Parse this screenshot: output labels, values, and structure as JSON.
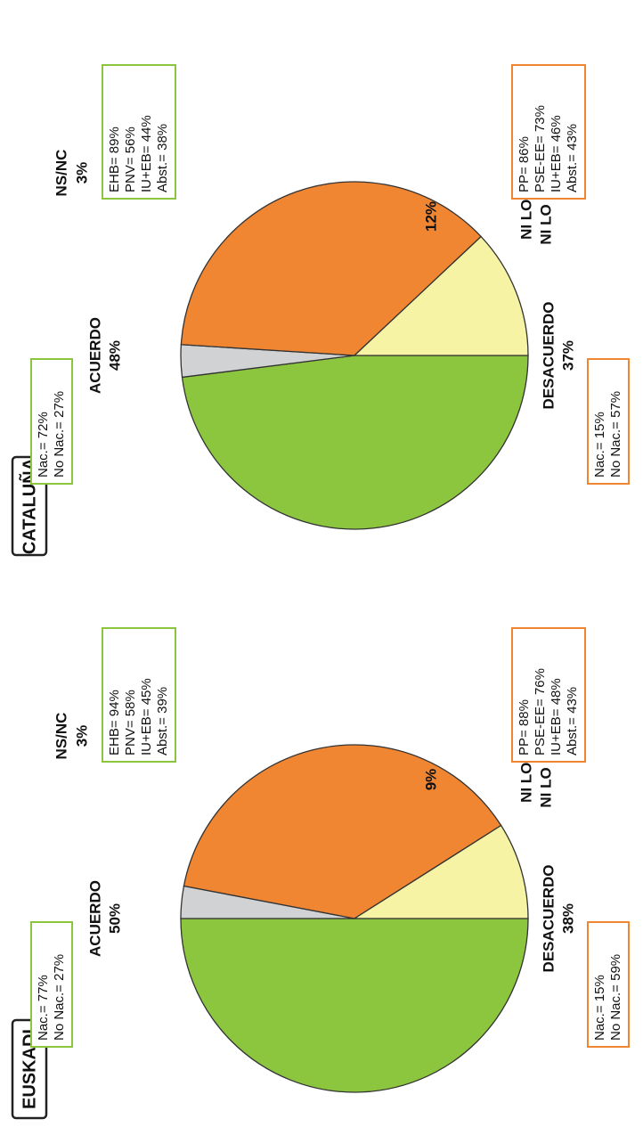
{
  "panels": [
    {
      "title": "EUSKADI",
      "acuerdo_label": "ACUERDO",
      "acuerdo_pct": "50%",
      "desacuerdo_label": "DESACUERDO",
      "desacuerdo_pct": "38%",
      "nsnc_label": "NS/NC",
      "nsnc_pct": "3%",
      "niuno_line1": "NI LO UNO",
      "niuno_line2": "NI LO OTRO",
      "niuno_pct": "9%",
      "box_acuerdo_nac": [
        "Nac.= 77%",
        "No Nac.= 27%"
      ],
      "box_acuerdo_party": [
        "EHB= 94%",
        "PNV= 58%",
        "IU+EB= 45%",
        "Abst.= 39%"
      ],
      "box_desac_nac": [
        "Nac.= 15%",
        "No Nac.= 59%"
      ],
      "box_desac_party": [
        "PP= 88%",
        "PSE-EE= 76%",
        "IU+EB= 48%",
        "Abst.= 43%"
      ]
    },
    {
      "title": "CATALUÑA",
      "acuerdo_label": "ACUERDO",
      "acuerdo_pct": "48%",
      "desacuerdo_label": "DESACUERDO",
      "desacuerdo_pct": "37%",
      "nsnc_label": "NS/NC",
      "nsnc_pct": "3%",
      "niuno_line1": "NI LO UNO",
      "niuno_line2": "NI LO OTRO",
      "niuno_pct": "12%",
      "box_acuerdo_nac": [
        "Nac.= 72%",
        "No Nac.= 27%"
      ],
      "box_acuerdo_party": [
        "EHB= 89%",
        "PNV= 56%",
        "IU+EB= 44%",
        "Abst.= 38%"
      ],
      "box_desac_nac": [
        "Nac.= 15%",
        "No Nac.= 57%"
      ],
      "box_desac_party": [
        "PP= 86%",
        "PSE-EE= 73%",
        "IU+EB= 46%",
        "Abst.= 43%"
      ]
    }
  ],
  "chart_data": [
    {
      "type": "pie",
      "title": "EUSKADI",
      "categories": [
        "ACUERDO",
        "NS/NC",
        "DESACUERDO",
        "NI LO UNO NI LO OTRO"
      ],
      "values": [
        50,
        3,
        38,
        9
      ],
      "colors": [
        "#8cc63f",
        "#d0d2d3",
        "#f08532",
        "#f6f3a4"
      ]
    },
    {
      "type": "pie",
      "title": "CATALUÑA",
      "categories": [
        "ACUERDO",
        "NS/NC",
        "DESACUERDO",
        "NI LO UNO NI LO OTRO"
      ],
      "values": [
        48,
        3,
        37,
        12
      ],
      "colors": [
        "#8cc63f",
        "#d0d2d3",
        "#f08532",
        "#f6f3a4"
      ]
    }
  ]
}
